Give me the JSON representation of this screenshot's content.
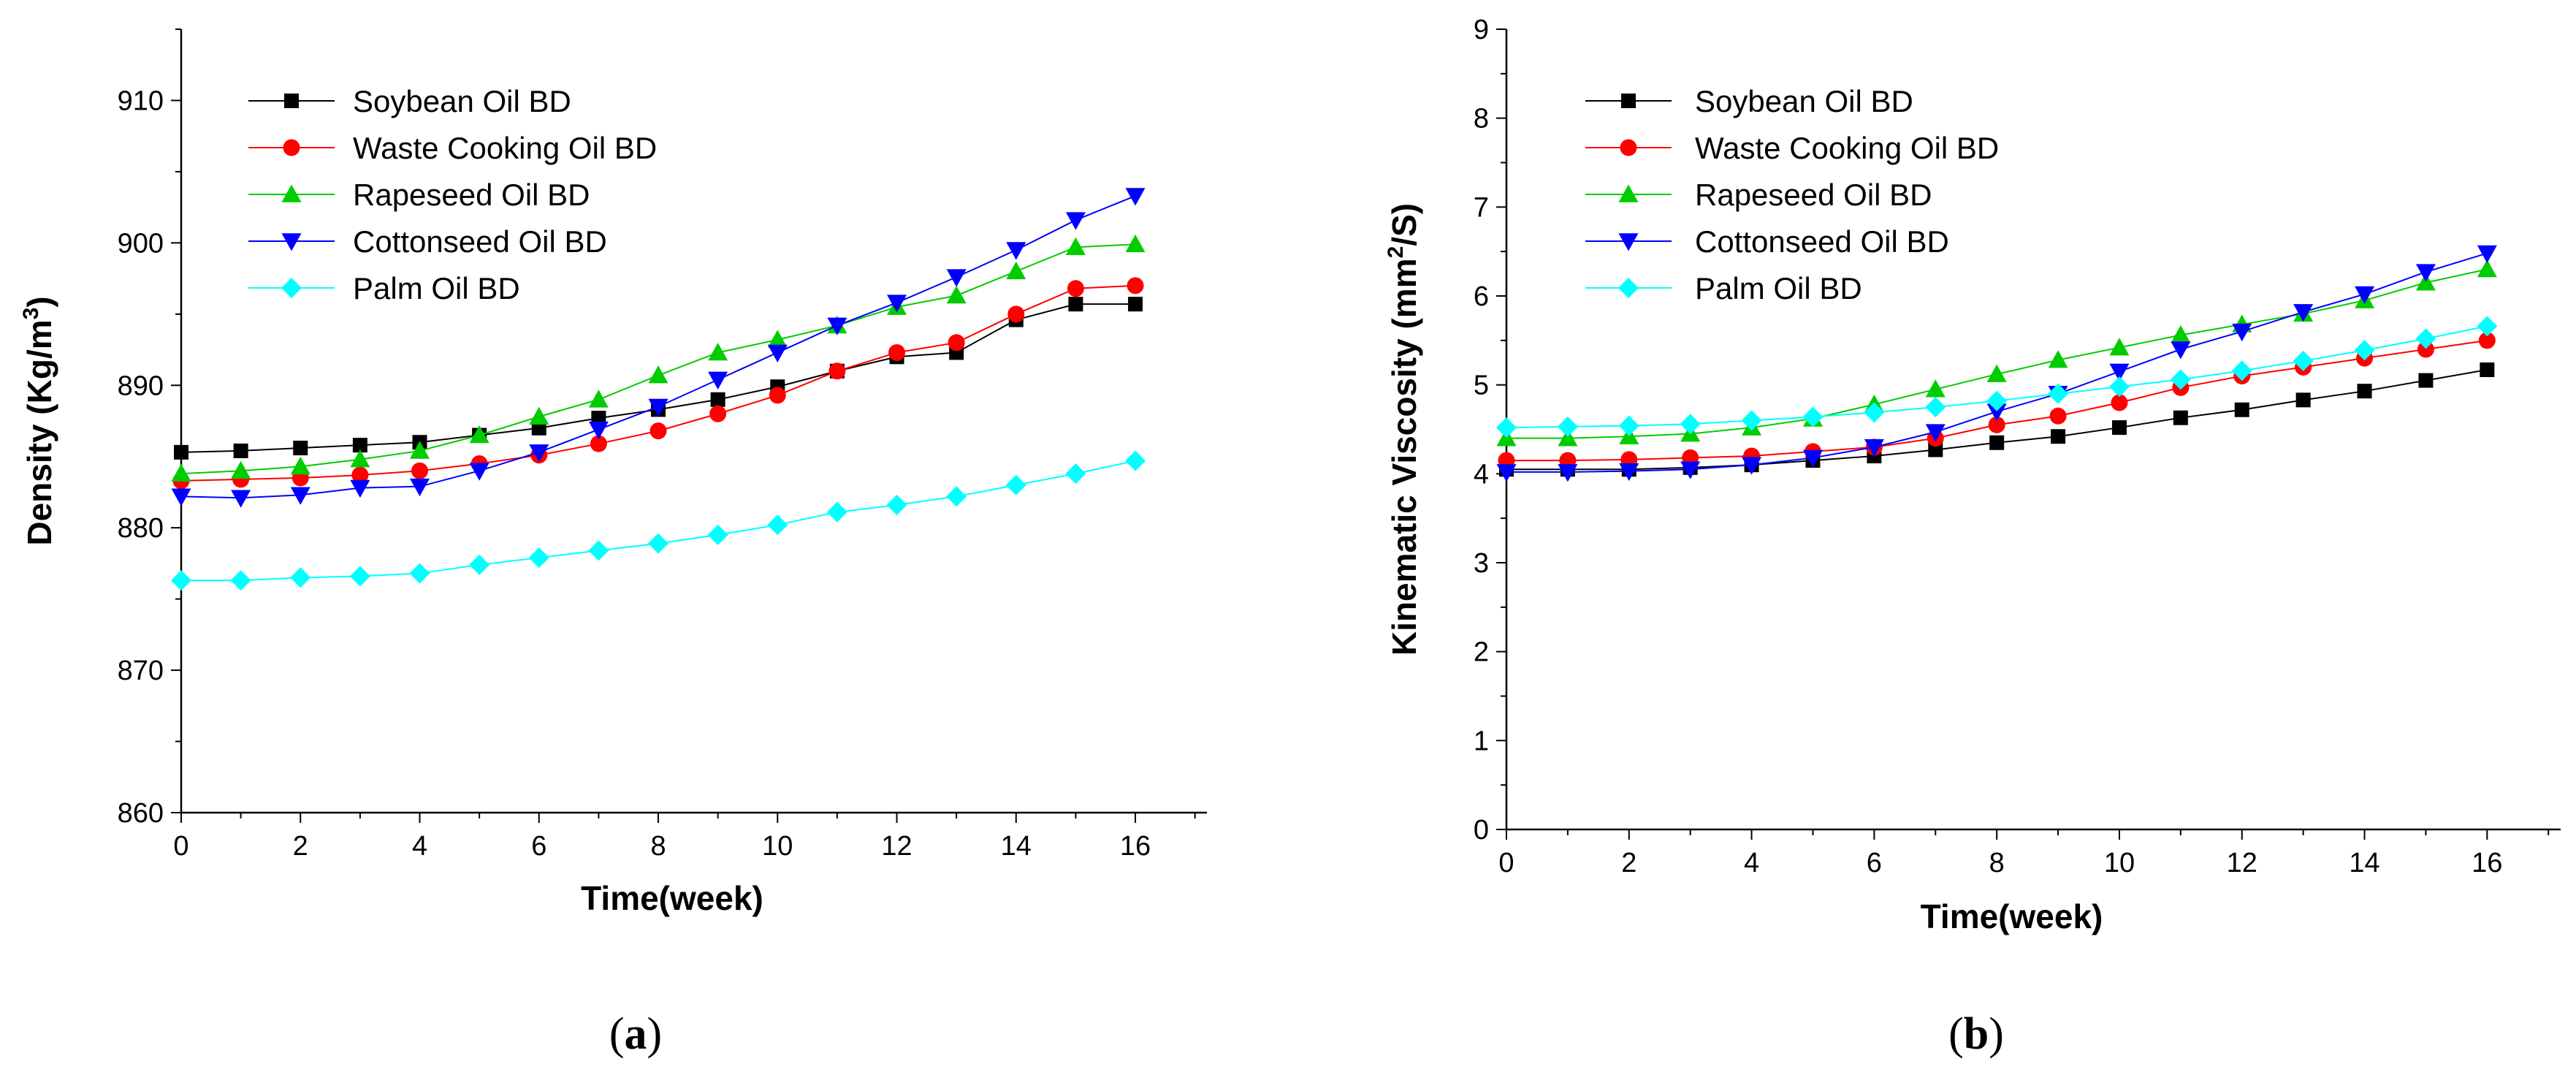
{
  "chart_data": [
    {
      "type": "line",
      "panel_label": "(a)",
      "ylabel_main": "Density (Kg/m",
      "ylabel_sup": "3",
      "ylabel_end": ")",
      "xlabel": "Time(week)",
      "xlim": [
        0,
        17.2
      ],
      "ylim": [
        860,
        915
      ],
      "xticks": [
        0,
        2,
        4,
        6,
        8,
        10,
        12,
        14,
        16
      ],
      "yticks": [
        860,
        870,
        880,
        890,
        900,
        910
      ],
      "legend_position": "top-left",
      "x": [
        0,
        1,
        2,
        3,
        4,
        5,
        6,
        7,
        8,
        9,
        10,
        11,
        12,
        13,
        14,
        15,
        16
      ],
      "series": [
        {
          "name": "Soybean Oil BD",
          "color": "#000000",
          "marker": "square",
          "values": [
            885.3,
            885.4,
            885.6,
            885.8,
            886.0,
            886.5,
            887.0,
            887.7,
            888.3,
            889.0,
            889.9,
            891.0,
            892.0,
            892.3,
            894.6,
            895.7,
            895.7
          ]
        },
        {
          "name": "Waste Cooking Oil BD",
          "color": "#ff0000",
          "marker": "circle",
          "values": [
            883.3,
            883.4,
            883.5,
            883.7,
            884.0,
            884.5,
            885.1,
            885.9,
            886.8,
            888.0,
            889.3,
            891.0,
            892.3,
            893.0,
            895.0,
            896.8,
            897.0
          ]
        },
        {
          "name": "Rapeseed Oil BD",
          "color": "#00cc00",
          "marker": "triangle-up",
          "values": [
            883.8,
            884.0,
            884.3,
            884.8,
            885.4,
            886.5,
            887.8,
            889.0,
            890.7,
            892.3,
            893.2,
            894.2,
            895.5,
            896.3,
            898.0,
            899.7,
            899.9
          ]
        },
        {
          "name": "Cottonseed Oil BD",
          "color": "#0000ff",
          "marker": "triangle-down",
          "values": [
            882.2,
            882.1,
            882.3,
            882.8,
            882.9,
            884.0,
            885.3,
            886.9,
            888.5,
            890.4,
            892.3,
            894.2,
            895.8,
            897.6,
            899.5,
            901.6,
            903.3
          ]
        },
        {
          "name": "Palm Oil BD",
          "color": "#00ffff",
          "marker": "diamond",
          "values": [
            876.3,
            876.3,
            876.5,
            876.6,
            876.8,
            877.4,
            877.9,
            878.4,
            878.9,
            879.5,
            880.2,
            881.1,
            881.6,
            882.2,
            883.0,
            883.8,
            884.7
          ]
        }
      ]
    },
    {
      "type": "line",
      "panel_label": "(b)",
      "ylabel_main": "Kinematic Viscosity (mm",
      "ylabel_sup": "2",
      "ylabel_end": "/S)",
      "xlabel": "Time(week)",
      "xlim": [
        0,
        17.2
      ],
      "ylim": [
        0,
        9
      ],
      "xticks": [
        0,
        2,
        4,
        6,
        8,
        10,
        12,
        14,
        16
      ],
      "yticks": [
        0,
        1,
        2,
        3,
        4,
        5,
        6,
        7,
        8,
        9
      ],
      "legend_position": "top-left",
      "x": [
        0,
        1,
        2,
        3,
        4,
        5,
        6,
        7,
        8,
        9,
        10,
        11,
        12,
        13,
        14,
        15,
        16
      ],
      "series": [
        {
          "name": "Soybean Oil BD",
          "color": "#000000",
          "marker": "square",
          "values": [
            4.05,
            4.05,
            4.05,
            4.07,
            4.1,
            4.15,
            4.2,
            4.27,
            4.35,
            4.42,
            4.52,
            4.63,
            4.72,
            4.83,
            4.93,
            5.05,
            5.17
          ]
        },
        {
          "name": "Waste Cooking Oil BD",
          "color": "#ff0000",
          "marker": "circle",
          "values": [
            4.15,
            4.15,
            4.16,
            4.18,
            4.2,
            4.25,
            4.3,
            4.4,
            4.55,
            4.65,
            4.8,
            4.97,
            5.1,
            5.2,
            5.3,
            5.4,
            5.5
          ]
        },
        {
          "name": "Rapeseed Oil BD",
          "color": "#00cc00",
          "marker": "triangle-up",
          "values": [
            4.4,
            4.4,
            4.42,
            4.45,
            4.52,
            4.62,
            4.78,
            4.95,
            5.12,
            5.28,
            5.42,
            5.56,
            5.68,
            5.8,
            5.95,
            6.15,
            6.3
          ]
        },
        {
          "name": "Cottonseed Oil BD",
          "color": "#0000ff",
          "marker": "triangle-down",
          "values": [
            4.02,
            4.02,
            4.03,
            4.05,
            4.1,
            4.18,
            4.3,
            4.47,
            4.7,
            4.9,
            5.15,
            5.4,
            5.6,
            5.82,
            6.02,
            6.27,
            6.48
          ]
        },
        {
          "name": "Palm Oil BD",
          "color": "#00ffff",
          "marker": "diamond",
          "values": [
            4.52,
            4.53,
            4.54,
            4.56,
            4.6,
            4.64,
            4.69,
            4.75,
            4.82,
            4.9,
            4.98,
            5.06,
            5.16,
            5.27,
            5.39,
            5.52,
            5.66
          ]
        }
      ]
    }
  ]
}
